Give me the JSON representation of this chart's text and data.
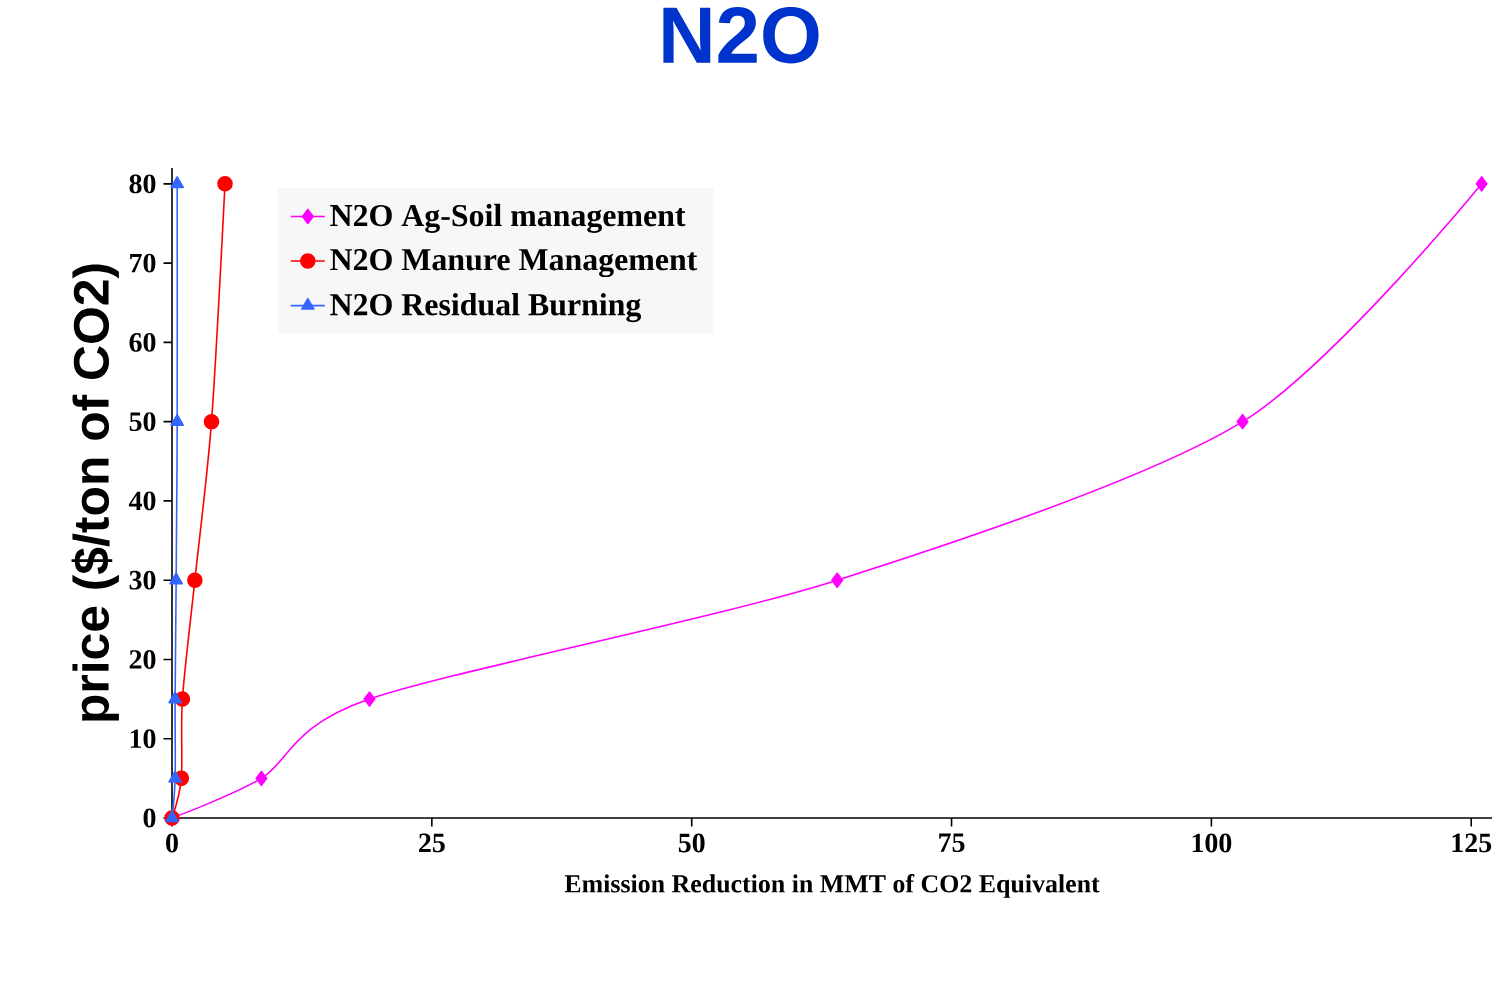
{
  "chart_data": {
    "type": "line",
    "title": "N2O",
    "xlabel": "Emission Reduction in MMT of CO2 Equivalent",
    "ylabel": "price ($/ton of CO2)",
    "xlim": [
      0,
      127
    ],
    "ylim": [
      0,
      82
    ],
    "xticks": [
      0,
      25,
      50,
      75,
      100,
      125
    ],
    "yticks": [
      0,
      10,
      20,
      30,
      40,
      50,
      60,
      70,
      80
    ],
    "grid": false,
    "legend": "top left",
    "series": [
      {
        "name": "N2O Ag-Soil management",
        "color": "#ff00ff",
        "marker": "diamond",
        "x": [
          0,
          8.6,
          19,
          64,
          103,
          126
        ],
        "values": [
          0,
          5,
          15,
          30,
          50,
          80
        ]
      },
      {
        "name": "N2O Manure Management",
        "color": "#ff0000",
        "marker": "circle",
        "x": [
          0,
          0.9,
          1,
          2.2,
          3.8,
          5.1
        ],
        "values": [
          0,
          5,
          15,
          30,
          50,
          80
        ]
      },
      {
        "name": "N2O Residual Burning",
        "color": "#3366ff",
        "marker": "triangle",
        "x": [
          0,
          0.3,
          0.3,
          0.4,
          0.5,
          0.5
        ],
        "values": [
          0,
          5,
          15,
          30,
          50,
          80
        ]
      }
    ]
  }
}
